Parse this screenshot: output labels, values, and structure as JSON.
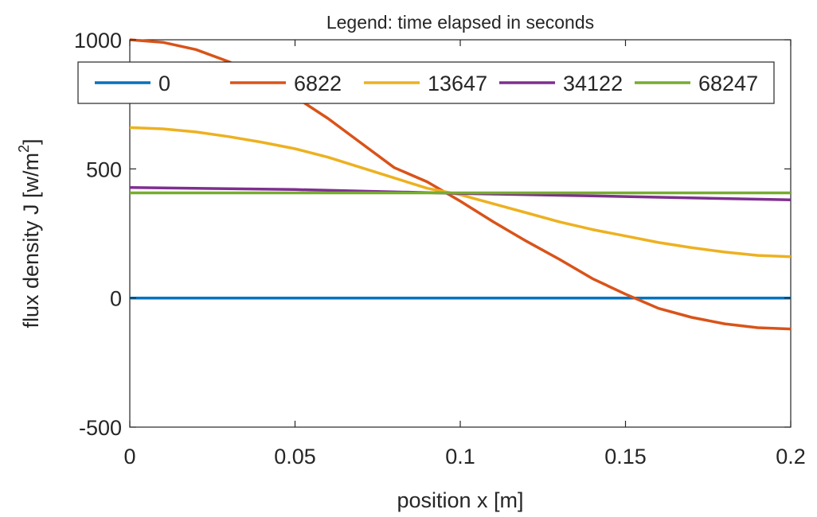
{
  "chart_data": {
    "type": "line",
    "title": "Legend: time elapsed in seconds",
    "xlabel": "position  x  [m]",
    "ylabel_parts": {
      "main": "flux density  J  [w/m",
      "sup": "2",
      "end": "]"
    },
    "xlim": [
      0,
      0.2
    ],
    "ylim": [
      -500,
      1000
    ],
    "xticks": [
      0,
      0.05,
      0.1,
      0.15,
      0.2
    ],
    "xtick_labels": [
      "0",
      "0.05",
      "0.1",
      "0.15",
      "0.2"
    ],
    "yticks": [
      -500,
      0,
      500,
      1000
    ],
    "ytick_labels": [
      "-500",
      "0",
      "500",
      "1000"
    ],
    "grid": false,
    "legend_position": "top",
    "series": [
      {
        "name": "0",
        "color": "#0072BD",
        "x": [
          0,
          0.2
        ],
        "y": [
          0,
          0
        ]
      },
      {
        "name": "6822",
        "color": "#D95319",
        "x": [
          0,
          0.01,
          0.02,
          0.03,
          0.04,
          0.05,
          0.06,
          0.07,
          0.08,
          0.09,
          0.1,
          0.11,
          0.12,
          0.13,
          0.14,
          0.15,
          0.16,
          0.17,
          0.18,
          0.19,
          0.2
        ],
        "y": [
          1000,
          990,
          962,
          915,
          853,
          779,
          695,
          600,
          505,
          450,
          375,
          295,
          220,
          150,
          75,
          15,
          -40,
          -75,
          -100,
          -115,
          -120
        ]
      },
      {
        "name": "13647",
        "color": "#EDB120",
        "x": [
          0,
          0.01,
          0.02,
          0.03,
          0.04,
          0.05,
          0.06,
          0.07,
          0.08,
          0.09,
          0.1,
          0.11,
          0.12,
          0.13,
          0.14,
          0.15,
          0.16,
          0.17,
          0.18,
          0.19,
          0.2
        ],
        "y": [
          660,
          655,
          643,
          625,
          603,
          578,
          545,
          505,
          465,
          425,
          400,
          365,
          330,
          295,
          265,
          240,
          215,
          195,
          178,
          165,
          160
        ]
      },
      {
        "name": "34122",
        "color": "#7E2F8E",
        "x": [
          0,
          0.05,
          0.1,
          0.15,
          0.2
        ],
        "y": [
          428,
          420,
          405,
          393,
          380
        ]
      },
      {
        "name": "68247",
        "color": "#77AC30",
        "x": [
          0,
          0.2
        ],
        "y": [
          407,
          407
        ]
      }
    ]
  }
}
